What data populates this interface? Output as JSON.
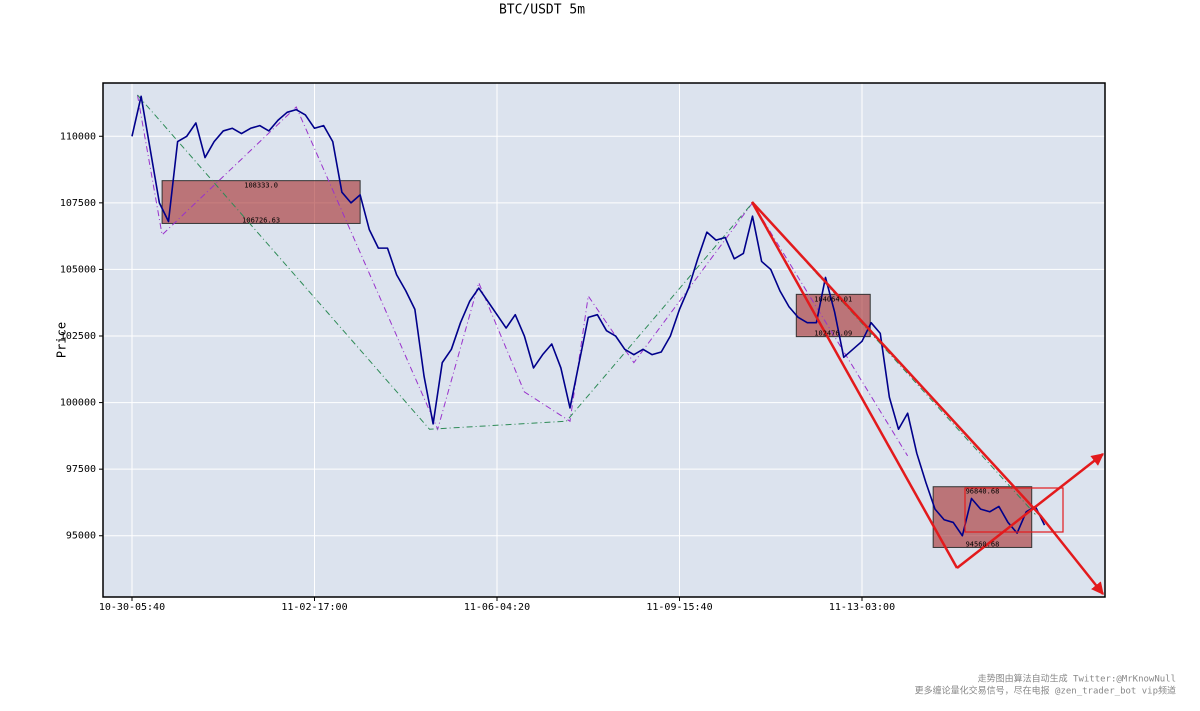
{
  "chart_data": {
    "type": "line",
    "title": "BTC/USDT 5m",
    "y_label": "Price",
    "color": "#00008b",
    "grid": true,
    "ylim": [
      92700,
      112000
    ],
    "yticks": [
      95000,
      97500,
      100000,
      102500,
      105000,
      107500,
      110000
    ],
    "categories": [
      "10-30-05:40",
      null,
      null,
      null,
      null,
      null,
      null,
      null,
      null,
      null,
      null,
      null,
      null,
      null,
      null,
      null,
      null,
      null,
      null,
      null,
      "11-02-17:00",
      null,
      null,
      null,
      null,
      null,
      null,
      null,
      null,
      null,
      null,
      null,
      null,
      null,
      null,
      null,
      null,
      null,
      null,
      null,
      "11-06-04:20",
      null,
      null,
      null,
      null,
      null,
      null,
      null,
      null,
      null,
      null,
      null,
      null,
      null,
      null,
      null,
      null,
      null,
      null,
      null,
      "11-09-15:40",
      null,
      null,
      null,
      null,
      null,
      null,
      null,
      null,
      null,
      null,
      null,
      null,
      null,
      null,
      null,
      null,
      null,
      null,
      null,
      "11-13-03:00",
      null,
      null,
      null,
      null,
      null,
      null,
      null,
      null,
      null,
      null,
      null,
      null,
      null,
      null,
      null,
      null,
      null,
      null,
      null,
      null
    ],
    "values": [
      110000,
      111500,
      109500,
      107500,
      106800,
      109800,
      110000,
      110500,
      109200,
      109800,
      110200,
      110300,
      110100,
      110300,
      110400,
      110200,
      110600,
      110900,
      111000,
      110800,
      110300,
      110400,
      109800,
      107900,
      107500,
      107800,
      106500,
      105800,
      105800,
      104800,
      104200,
      103500,
      101000,
      99200,
      101500,
      102000,
      103000,
      103800,
      104300,
      103800,
      103300,
      102800,
      103300,
      102500,
      101300,
      101800,
      102200,
      101300,
      99800,
      101500,
      103200,
      103300,
      102700,
      102500,
      102000,
      101800,
      102000,
      101800,
      101900,
      102500,
      103500,
      104300,
      105400,
      106400,
      106100,
      106200,
      105400,
      105600,
      107000,
      105300,
      105000,
      104200,
      103600,
      103200,
      103000,
      103000,
      104700,
      103400,
      101700,
      102000,
      102300,
      103000,
      102600,
      100200,
      99000,
      99600,
      98100,
      97000,
      96000,
      95600,
      95500,
      95000,
      96400,
      96000,
      95900,
      96100,
      95500,
      95100,
      95900,
      96100,
      95400
    ],
    "pens": [
      {
        "color": "#9932cc",
        "index": [
          0.6,
          3.3,
          18,
          33.5,
          38,
          43,
          48,
          50,
          55,
          68,
          85
        ],
        "prices": [
          111550,
          106300,
          111100,
          99000,
          104500,
          100400,
          99300,
          104000,
          101500,
          107500,
          98000
        ]
      },
      {
        "color": "#2e8b57",
        "index": [
          0.6,
          32.6,
          47.6,
          68,
          99
        ],
        "prices": [
          111550,
          99000,
          99300,
          107500,
          95800
        ]
      }
    ],
    "zones": [
      {
        "high": 108333,
        "high_label": "108333.0",
        "low": 106726.63,
        "start": 3.3,
        "end": 25
      },
      {
        "high": 104064.01,
        "low": 102476.09,
        "start": 72.8,
        "end": 80.9
      },
      {
        "high": 96840.68,
        "low": 94560.68,
        "start": 87.8,
        "end": 98.6
      }
    ],
    "footer": [
      "走势图由算法自动生成  Twitter:@MrKnowNull",
      "更多缠论量化交易信号，尽在电报 @zen_trader_bot vip频道"
    ]
  }
}
